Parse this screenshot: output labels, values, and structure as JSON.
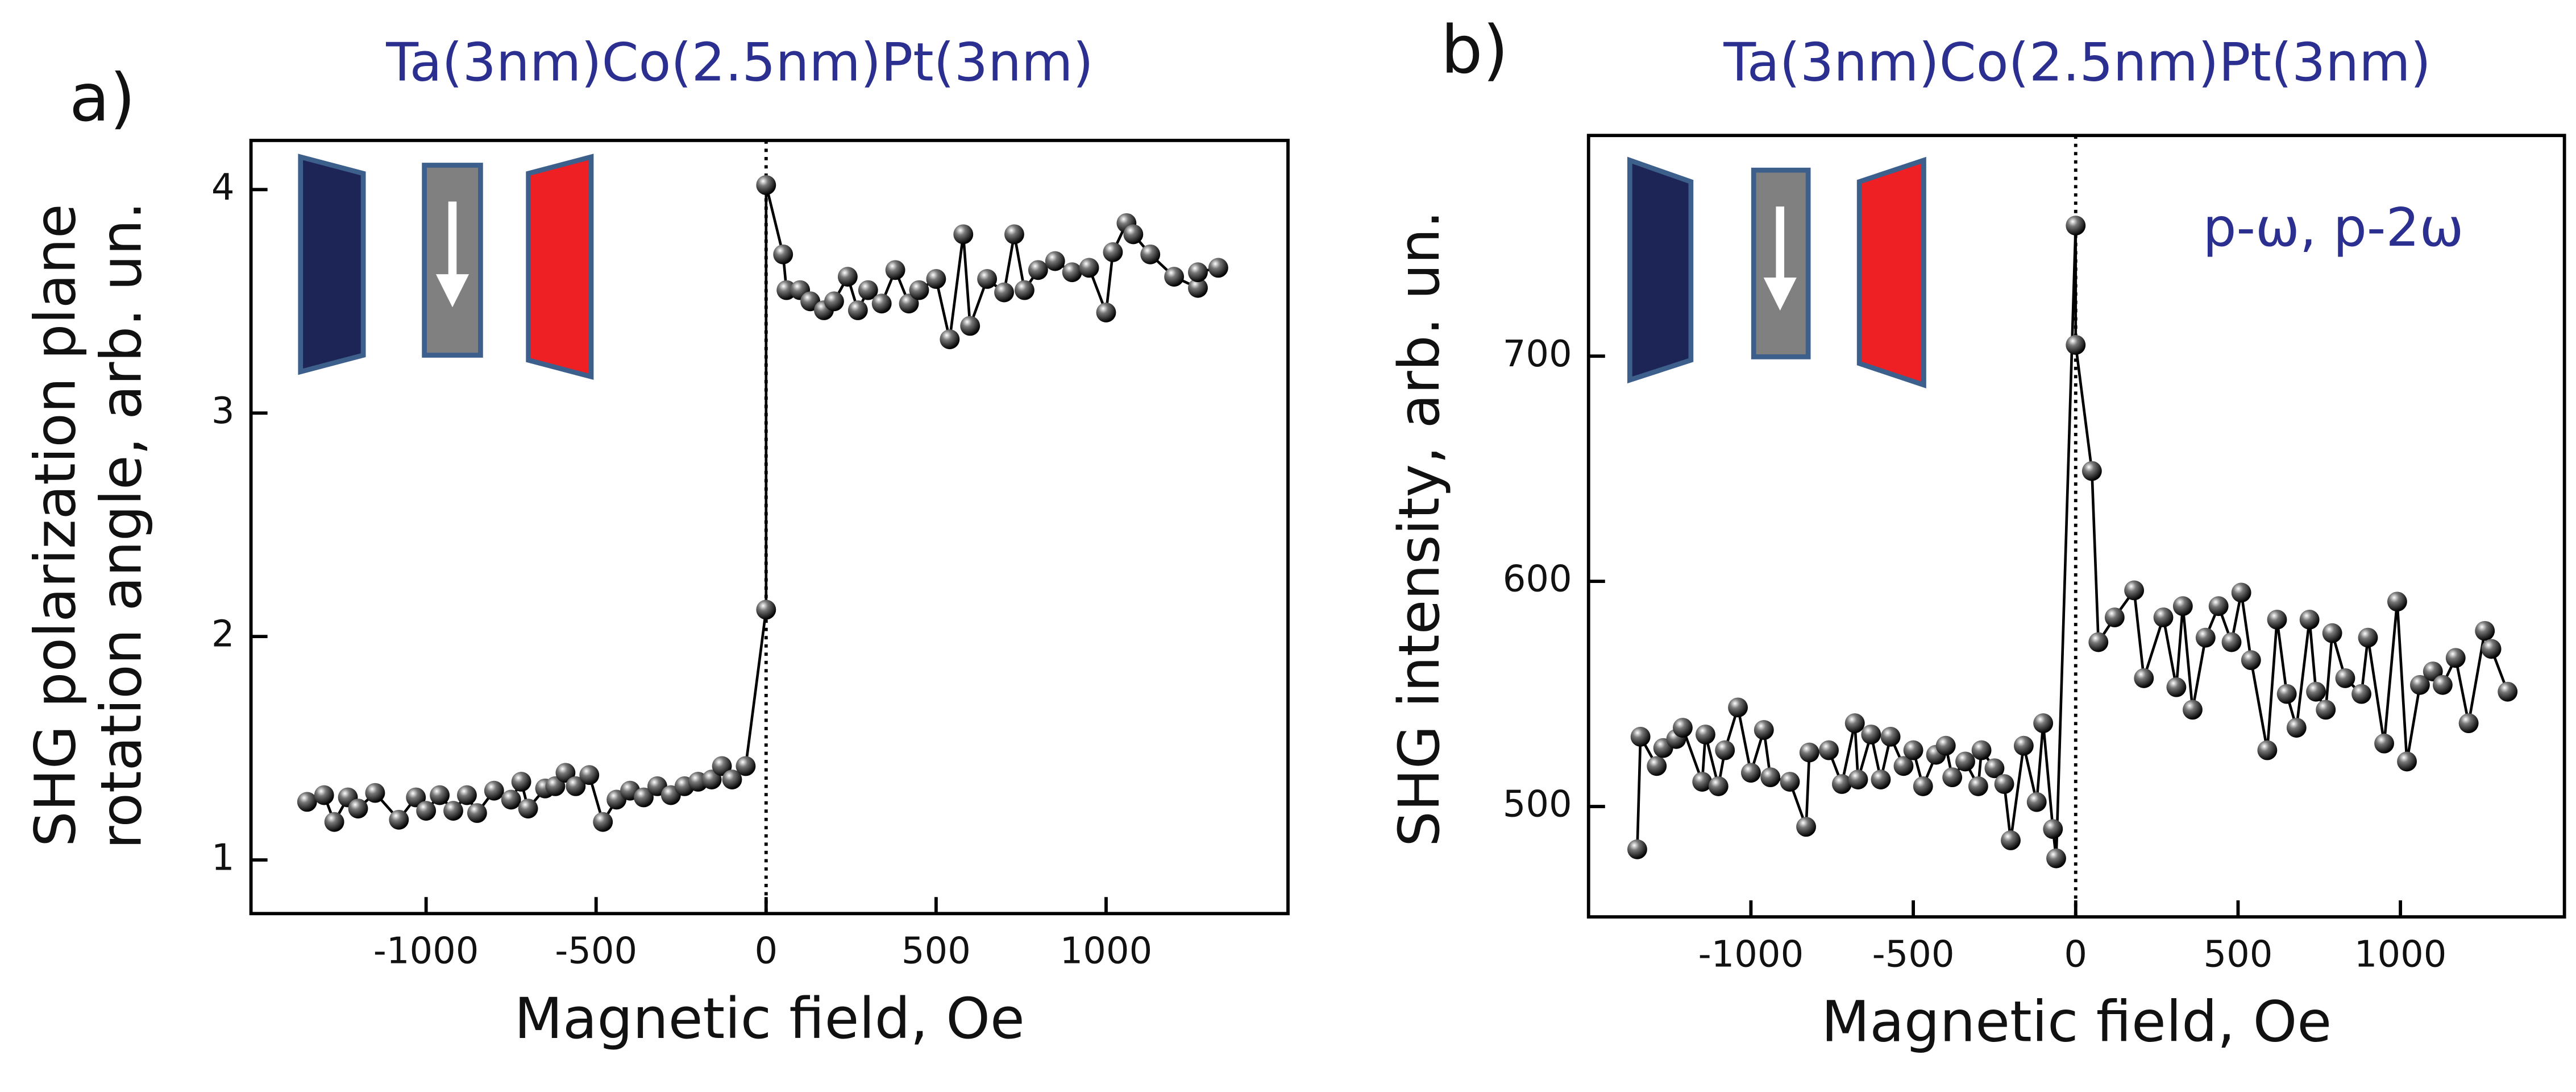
{
  "chart_data": [
    {
      "type": "line",
      "panel_label": "a)",
      "title": "Ta(3nm)Co(2.5nm)Pt(3nm)",
      "x_label": "Magnetic field, Oe",
      "y_label": [
        "SHG polarization plane",
        "rotation angle, arb. un."
      ],
      "color": "#000000",
      "xlim": [
        -1515,
        1535
      ],
      "ylim": [
        0.76,
        4.22
      ],
      "xticks": [
        -1000,
        -500,
        0,
        500,
        1000
      ],
      "yticks": [
        1,
        2,
        3,
        4
      ],
      "vline": 0,
      "x": [
        -1350,
        -1300,
        -1270,
        -1230,
        -1200,
        -1150,
        -1080,
        -1030,
        -1000,
        -960,
        -920,
        -880,
        -850,
        -800,
        -750,
        -720,
        -700,
        -650,
        -620,
        -590,
        -560,
        -520,
        -480,
        -440,
        -400,
        -360,
        -320,
        -280,
        -240,
        -200,
        -160,
        -130,
        -100,
        -60,
        0,
        0,
        50,
        60,
        100,
        130,
        170,
        200,
        240,
        270,
        300,
        340,
        380,
        420,
        450,
        500,
        540,
        580,
        600,
        650,
        700,
        730,
        760,
        800,
        850,
        900,
        950,
        1000,
        1020,
        1060,
        1080,
        1130,
        1200,
        1270,
        1270,
        1330
      ],
      "values": [
        1.26,
        1.29,
        1.17,
        1.28,
        1.23,
        1.3,
        1.18,
        1.28,
        1.22,
        1.29,
        1.22,
        1.29,
        1.21,
        1.31,
        1.27,
        1.35,
        1.23,
        1.32,
        1.33,
        1.39,
        1.33,
        1.38,
        1.17,
        1.27,
        1.31,
        1.28,
        1.33,
        1.29,
        1.33,
        1.35,
        1.36,
        1.42,
        1.36,
        1.42,
        2.12,
        4.02,
        3.71,
        3.55,
        3.55,
        3.5,
        3.46,
        3.5,
        3.61,
        3.46,
        3.55,
        3.49,
        3.64,
        3.49,
        3.55,
        3.6,
        3.33,
        3.8,
        3.39,
        3.6,
        3.54,
        3.8,
        3.55,
        3.64,
        3.68,
        3.63,
        3.65,
        3.45,
        3.72,
        3.85,
        3.8,
        3.71,
        3.61,
        3.56,
        3.63,
        3.65
      ]
    },
    {
      "type": "line",
      "panel_label": "b)",
      "title": "Ta(3nm)Co(2.5nm)Pt(3nm)",
      "x_label": "Magnetic field, Oe",
      "y_label": [
        "SHG intensity, arb. un."
      ],
      "annotation": "p-ω, p-2ω",
      "color": "#000000",
      "xlim": [
        -1500,
        1505
      ],
      "ylim": [
        451,
        798
      ],
      "xticks": [
        -1000,
        -500,
        0,
        500,
        1000
      ],
      "yticks": [
        500,
        600,
        700
      ],
      "vline": 0,
      "x": [
        -1350,
        -1340,
        -1290,
        -1270,
        -1230,
        -1210,
        -1150,
        -1140,
        -1100,
        -1080,
        -1040,
        -1000,
        -960,
        -940,
        -880,
        -830,
        -820,
        -760,
        -720,
        -680,
        -670,
        -630,
        -600,
        -570,
        -530,
        -500,
        -470,
        -430,
        -400,
        -380,
        -340,
        -300,
        -290,
        -250,
        -220,
        -200,
        -160,
        -120,
        -100,
        -70,
        -60,
        0,
        0,
        50,
        70,
        120,
        180,
        210,
        270,
        310,
        330,
        360,
        400,
        440,
        480,
        510,
        540,
        590,
        620,
        650,
        680,
        720,
        740,
        770,
        790,
        830,
        880,
        900,
        950,
        990,
        1020,
        1060,
        1100,
        1130,
        1170,
        1210,
        1260,
        1280,
        1330
      ],
      "values": [
        481,
        531,
        518,
        526,
        530,
        535,
        511,
        532,
        509,
        525,
        544,
        515,
        534,
        513,
        511,
        491,
        524,
        525,
        510,
        537,
        512,
        532,
        512,
        531,
        518,
        525,
        509,
        523,
        527,
        513,
        520,
        509,
        525,
        517,
        510,
        485,
        527,
        502,
        537,
        490,
        477,
        758,
        705,
        649,
        573,
        584,
        596,
        557,
        584,
        553,
        589,
        543,
        575,
        589,
        573,
        595,
        565,
        525,
        583,
        550,
        535,
        583,
        551,
        543,
        577,
        557,
        550,
        575,
        528,
        591,
        520,
        554,
        560,
        554,
        566,
        537,
        578,
        570,
        551
      ]
    }
  ]
}
